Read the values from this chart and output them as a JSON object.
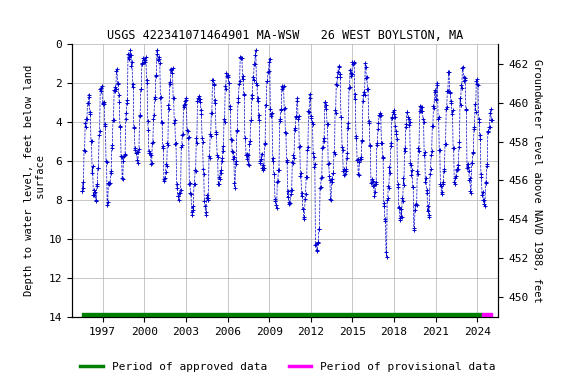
{
  "title": "USGS 422341071464901 MA-WSW   26 WEST BOYLSTON, MA",
  "ylabel_left": "Depth to water level, feet below land\n surface",
  "ylabel_right": "Groundwater level above NAVD 1988, feet",
  "ylim_left": [
    14,
    0
  ],
  "ylim_right": [
    449.0,
    463.0
  ],
  "yticks_left": [
    0,
    2,
    4,
    6,
    8,
    10,
    12,
    14
  ],
  "yticks_right": [
    450,
    452,
    454,
    456,
    458,
    460,
    462
  ],
  "xtick_years": [
    1997,
    2000,
    2003,
    2006,
    2009,
    2012,
    2015,
    2018,
    2021,
    2024
  ],
  "xlim": [
    1994.8,
    2025.5
  ],
  "data_color": "#0000cc",
  "approved_color": "#008000",
  "provisional_color": "#ff00ff",
  "background_color": "#ffffff",
  "grid_color": "#b0b0b0",
  "title_fontsize": 8.5,
  "axis_label_fontsize": 7.5,
  "tick_fontsize": 8,
  "legend_fontsize": 8,
  "approved_end_year": 2024.3,
  "data_xstart": 1995.5,
  "data_xend": 2025.0
}
